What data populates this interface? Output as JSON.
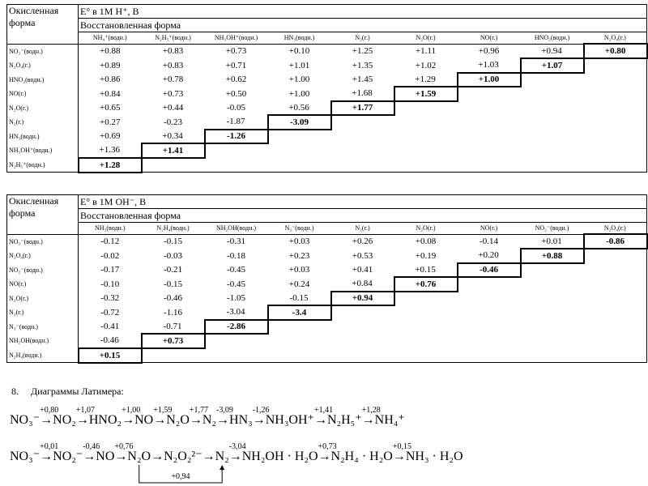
{
  "tables": [
    {
      "left_header": "Окисленная форма",
      "title": "E° в 1M H⁺, B",
      "subheader": "Восстановленная форма",
      "columns": [
        "NH₄⁺(водн.)",
        "N₂H₅⁺(водн.)",
        "NH₃OH⁺(водн.)",
        "HN₃(водн.)",
        "N₂(г.)",
        "N₂O(г.)",
        "NO(г.)",
        "HNO₂(водн.)",
        "N₂O₄(г.)"
      ],
      "rows": [
        {
          "label": "NO₃⁻(водн.)",
          "values": [
            "+0.88",
            "+0.83",
            "+0.73",
            "+0.10",
            "+1.25",
            "+1.11",
            "+0.96",
            "+0.94",
            "+0.80"
          ]
        },
        {
          "label": "N₂O₄(г.)",
          "values": [
            "+0.89",
            "+0.83",
            "+0.71",
            "+1.01",
            "+1.35",
            "+1.02",
            "+1.03",
            "+1.07"
          ]
        },
        {
          "label": "HNO₂(водн.)",
          "values": [
            "+0.86",
            "+0.78",
            "+0.62",
            "+1.00",
            "+1.45",
            "+1.29",
            "+1.00"
          ]
        },
        {
          "label": "NO(г.)",
          "values": [
            "+0.84",
            "+0.73",
            "+0.50",
            "+1.00",
            "+1.68",
            "+1.59"
          ]
        },
        {
          "label": "N₂O(г.)",
          "values": [
            "+0.65",
            "+0.44",
            "-0.05",
            "+0.56",
            "+1.77"
          ]
        },
        {
          "label": "N₂(г.)",
          "values": [
            "+0.27",
            "-0.23",
            "-1.87",
            "-3.09"
          ]
        },
        {
          "label": "HN₃(водн.)",
          "values": [
            "+0.69",
            "+0.34",
            "-1.26"
          ]
        },
        {
          "label": "NH₃OH⁺(водн.)",
          "values": [
            "+1.36",
            "+1.41"
          ]
        },
        {
          "label": "N₂H₅⁺(водн.)",
          "values": [
            "+1.28"
          ]
        }
      ]
    },
    {
      "left_header": "Окисленная форма",
      "title": "E° в 1M OH⁻, B",
      "subheader": "Восстановленная форма",
      "columns": [
        "NH₃(водн.)",
        "N₂H₄(водн.)",
        "NH₂OH(водн.)",
        "N₃⁻(водн.)",
        "N₂(г.)",
        "N₂O(г.)",
        "NO(г.)",
        "NO₂⁻(водн.)",
        "N₂O₄(г.)"
      ],
      "rows": [
        {
          "label": "NO₃⁻(водн.)",
          "values": [
            "-0.12",
            "-0.15",
            "-0.31",
            "+0.03",
            "+0.26",
            "+0.08",
            "-0.14",
            "+0.01",
            "-0.86"
          ]
        },
        {
          "label": "N₂O₄(г.)",
          "values": [
            "-0.02",
            "-0.03",
            "-0.18",
            "+0.23",
            "+0.53",
            "+0.19",
            "+0.20",
            "+0.88"
          ]
        },
        {
          "label": "NO₂⁻(водн.)",
          "values": [
            "-0.17",
            "-0.21",
            "-0.45",
            "+0.03",
            "+0.41",
            "+0.15",
            "-0.46"
          ]
        },
        {
          "label": "NO(г.)",
          "values": [
            "-0.10",
            "-0.15",
            "-0.45",
            "+0.24",
            "+0.84",
            "+0.76"
          ]
        },
        {
          "label": "N₂O(г.)",
          "values": [
            "-0.32",
            "-0.46",
            "-1.05",
            "-0.15",
            "+0.94"
          ]
        },
        {
          "label": "N₂(г.)",
          "values": [
            "-0.72",
            "-1.16",
            "-3.04",
            "-3.4"
          ]
        },
        {
          "label": "N₃⁻(водн.)",
          "values": [
            "-0.41",
            "-0.71",
            "-2.86"
          ]
        },
        {
          "label": "NH₂OH(водн.)",
          "values": [
            "-0.46",
            "+0.73"
          ]
        },
        {
          "label": "N₂H₄(водн.)",
          "values": [
            "+0.15"
          ]
        }
      ]
    }
  ],
  "section": {
    "number": "8.",
    "title": "Диаграммы Латимера:"
  },
  "latimer": [
    {
      "species": [
        "NO₃⁻",
        "NO₂",
        "HNO₂",
        "NO",
        "N₂O",
        "N₂",
        "HN₃",
        "NH₃OH⁺",
        "N₂H₅⁺",
        "NH₄⁺"
      ],
      "potentials": [
        "+0,80",
        "+1,07",
        "+1,00",
        "+1,59",
        "+1,77",
        "-3,09",
        "-1,26",
        "+1,41",
        "+1,28"
      ]
    },
    {
      "species": [
        "NO₃⁻",
        "NO₂⁻",
        "NO",
        "N₂O",
        "N₂O₂²⁻",
        "N₂",
        "NH₂OH · H₂O",
        "N₂H₄ · H₂O",
        "NH₃ · H₂O"
      ],
      "potentials": [
        "+0,01",
        "-0,46",
        "+0,76",
        null,
        null,
        "-3,04",
        "+0,73",
        "+0,15"
      ],
      "bracket": {
        "from": 3,
        "to": 5,
        "label": "+0,94"
      }
    }
  ]
}
